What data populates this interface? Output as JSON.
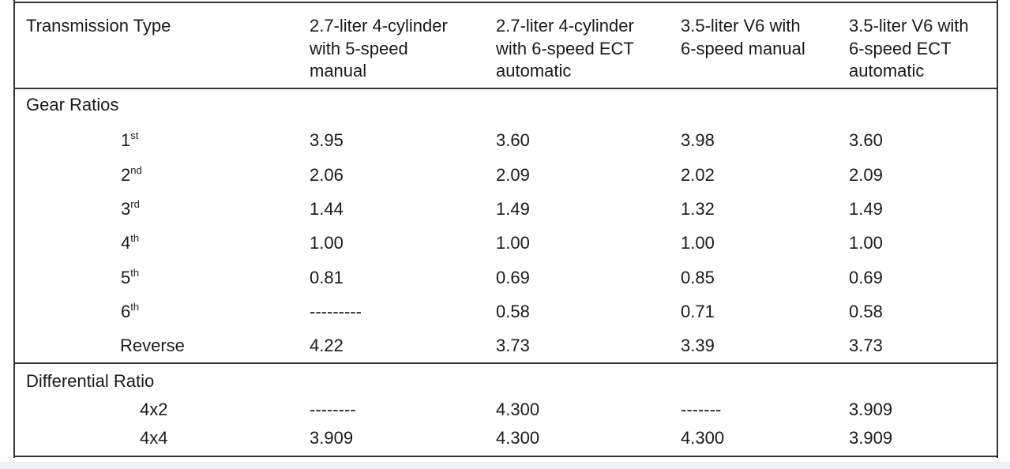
{
  "header": {
    "label": "Transmission Type",
    "columns": [
      [
        "2.7-liter 4-cylinder",
        "with 5-speed",
        "manual"
      ],
      [
        "2.7-liter 4-cylinder",
        "with 6-speed ECT",
        "automatic"
      ],
      [
        "3.5-liter V6 with",
        "6-speed manual"
      ],
      [
        "3.5-liter V6 with",
        "6-speed ECT",
        "automatic"
      ]
    ]
  },
  "sections": [
    {
      "title": "Gear Ratios",
      "rows": [
        {
          "label": {
            "base": "1",
            "sup": "st"
          },
          "values": [
            "3.95",
            "3.60",
            "3.98",
            "3.60"
          ]
        },
        {
          "label": {
            "base": "2",
            "sup": "nd"
          },
          "values": [
            "2.06",
            "2.09",
            "2.02",
            "2.09"
          ]
        },
        {
          "label": {
            "base": "3",
            "sup": "rd"
          },
          "values": [
            "1.44",
            "1.49",
            "1.32",
            "1.49"
          ]
        },
        {
          "label": {
            "base": "4",
            "sup": "th"
          },
          "values": [
            "1.00",
            "1.00",
            "1.00",
            "1.00"
          ]
        },
        {
          "label": {
            "base": "5",
            "sup": "th"
          },
          "values": [
            "0.81",
            "0.69",
            "0.85",
            "0.69"
          ]
        },
        {
          "label": {
            "base": "6",
            "sup": "th"
          },
          "values": [
            "---------",
            "0.58",
            "0.71",
            "0.58"
          ]
        },
        {
          "label": "Reverse",
          "values": [
            "4.22",
            "3.73",
            "3.39",
            "3.73"
          ]
        }
      ]
    },
    {
      "title": "Differential Ratio",
      "rows": [
        {
          "label": "4x2",
          "values": [
            "--------",
            "4.300",
            "-------",
            "3.909"
          ]
        },
        {
          "label": "4x4",
          "values": [
            "3.909",
            "4.300",
            "4.300",
            "3.909"
          ]
        }
      ]
    }
  ]
}
